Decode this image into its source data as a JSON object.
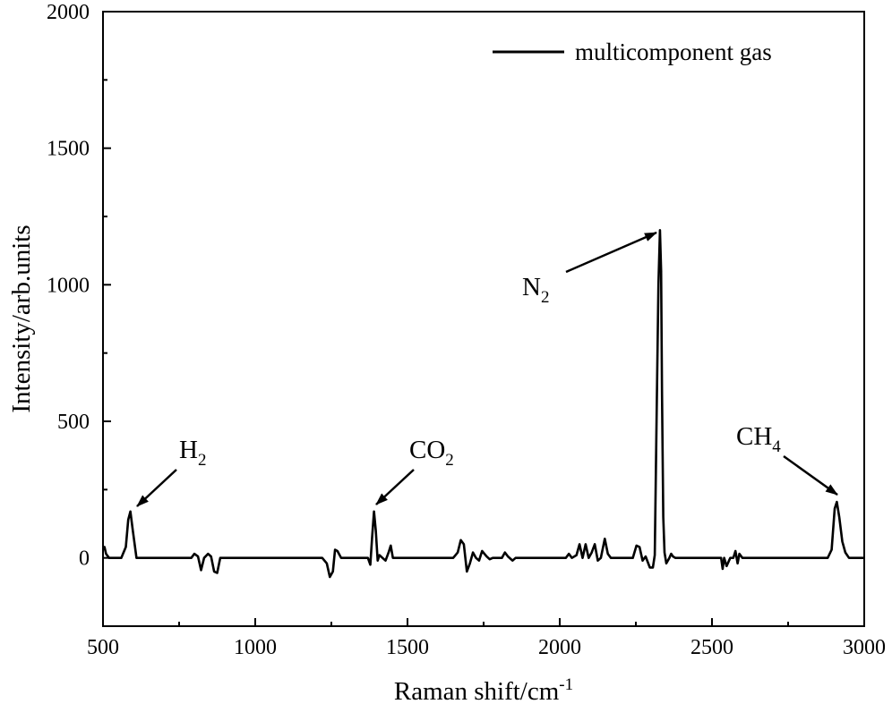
{
  "chart_data": {
    "type": "line",
    "xlabel": "Raman shift/cm",
    "xlabel_sup": "-1",
    "ylabel": "Intensity/arb.units",
    "xlim": [
      500,
      3000
    ],
    "ylim": [
      -250,
      2000
    ],
    "xticks": [
      500,
      1000,
      1500,
      2000,
      2500,
      3000
    ],
    "yticks": [
      0,
      500,
      1000,
      1500,
      2000
    ],
    "grid": false,
    "legend_position": "top-right",
    "series": [
      {
        "name": "multicomponent gas",
        "color": "#000000",
        "x": [
          500,
          505,
          510,
          520,
          560,
          575,
          583,
          590,
          598,
          610,
          790,
          800,
          812,
          822,
          832,
          845,
          855,
          865,
          875,
          885,
          895,
          1220,
          1235,
          1245,
          1255,
          1262,
          1270,
          1282,
          1370,
          1378,
          1384,
          1390,
          1396,
          1402,
          1408,
          1418,
          1428,
          1438,
          1445,
          1452,
          1460,
          1650,
          1665,
          1675,
          1685,
          1695,
          1705,
          1715,
          1725,
          1735,
          1745,
          1760,
          1770,
          1780,
          1810,
          1820,
          1830,
          1845,
          1855,
          1870,
          2020,
          2030,
          2040,
          2055,
          2065,
          2075,
          2085,
          2095,
          2105,
          2115,
          2125,
          2135,
          2148,
          2158,
          2168,
          2180,
          2240,
          2252,
          2262,
          2272,
          2282,
          2296,
          2306,
          2312,
          2318,
          2324,
          2329,
          2333,
          2336,
          2340,
          2344,
          2350,
          2360,
          2366,
          2372,
          2380,
          2530,
          2535,
          2540,
          2548,
          2560,
          2570,
          2577,
          2584,
          2590,
          2600,
          2880,
          2893,
          2903,
          2910,
          2918,
          2928,
          2938,
          2950,
          3000
        ],
        "values": [
          30,
          40,
          15,
          0,
          0,
          40,
          140,
          170,
          100,
          0,
          0,
          15,
          5,
          -45,
          0,
          15,
          5,
          -50,
          -55,
          0,
          0,
          0,
          -20,
          -70,
          -50,
          30,
          25,
          0,
          0,
          -25,
          80,
          170,
          100,
          -10,
          10,
          0,
          -10,
          20,
          45,
          0,
          0,
          0,
          20,
          65,
          50,
          -50,
          -20,
          20,
          0,
          -10,
          25,
          5,
          -5,
          0,
          0,
          20,
          5,
          -10,
          0,
          0,
          0,
          15,
          0,
          10,
          50,
          0,
          50,
          0,
          20,
          50,
          -10,
          0,
          70,
          15,
          0,
          0,
          0,
          45,
          40,
          -10,
          5,
          -35,
          -35,
          10,
          500,
          1000,
          1200,
          1050,
          600,
          150,
          20,
          -20,
          0,
          15,
          5,
          0,
          0,
          -40,
          0,
          -30,
          0,
          0,
          25,
          -20,
          15,
          0,
          0,
          30,
          180,
          205,
          150,
          60,
          20,
          0,
          0
        ]
      }
    ],
    "annotations": [
      {
        "label": "H",
        "sub": "2",
        "x": 590,
        "y": 170
      },
      {
        "label": "CO",
        "sub": "2",
        "x": 1390,
        "y": 180
      },
      {
        "label": "N",
        "sub": "2",
        "x": 2333,
        "y": 1200
      },
      {
        "label": "CH",
        "sub": "4",
        "x": 2910,
        "y": 205
      }
    ]
  }
}
